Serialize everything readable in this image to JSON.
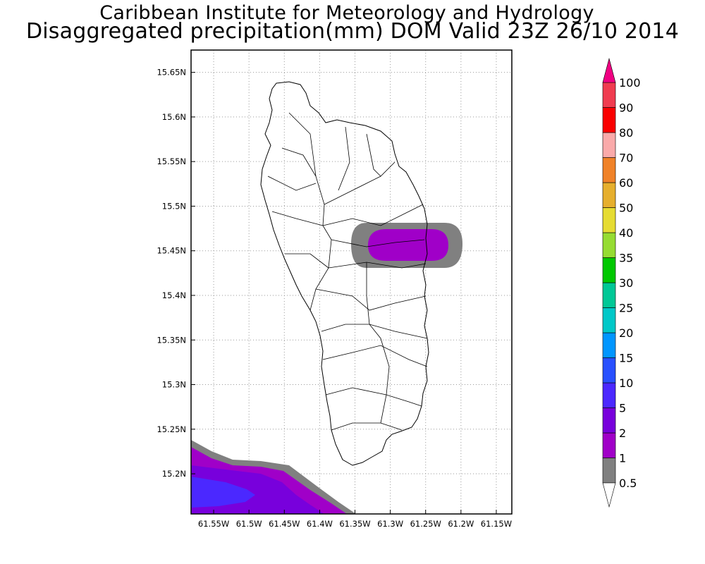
{
  "header": {
    "institution": "Caribbean Institute for Meteorology and Hydrology",
    "title": "Disaggregated precipitation(mm) DOM Valid 23Z 26/10 2014"
  },
  "map": {
    "region": "Dominica",
    "y_ticks": [
      "15.65N",
      "15.6N",
      "15.55N",
      "15.5N",
      "15.45N",
      "15.4N",
      "15.35N",
      "15.3N",
      "15.25N",
      "15.2N"
    ],
    "x_ticks": [
      "61.55W",
      "61.5W",
      "61.45W",
      "61.4W",
      "61.35W",
      "61.3W",
      "61.25W",
      "61.2W",
      "61.15W"
    ],
    "lat_range": [
      15.155,
      15.675
    ],
    "lon_range": [
      -61.582,
      -61.128
    ],
    "grid": true
  },
  "colorbar": {
    "labels": [
      "0.5",
      "1",
      "2",
      "5",
      "10",
      "15",
      "20",
      "25",
      "30",
      "35",
      "40",
      "50",
      "60",
      "70",
      "80",
      "90",
      "100"
    ],
    "colors": [
      "#ffffff",
      "#808080",
      "#a000c8",
      "#7800dc",
      "#4b28ff",
      "#2850ff",
      "#0096ff",
      "#00c8c8",
      "#00c896",
      "#00c800",
      "#96dc32",
      "#e6dc32",
      "#e6af2d",
      "#f08228",
      "#faaaaa",
      "#fa0000",
      "#f03c50",
      "#f00082"
    ]
  },
  "precip_areas": [
    {
      "name": "east-coast-cell",
      "lon": -61.275,
      "lat": 15.457,
      "levels": [
        "0.5-1",
        "1-2"
      ]
    },
    {
      "name": "southwest-cell",
      "lon": -61.56,
      "lat": 15.175,
      "levels": [
        "0.5-1",
        "1-2",
        "2-5",
        "5-10"
      ]
    }
  ]
}
